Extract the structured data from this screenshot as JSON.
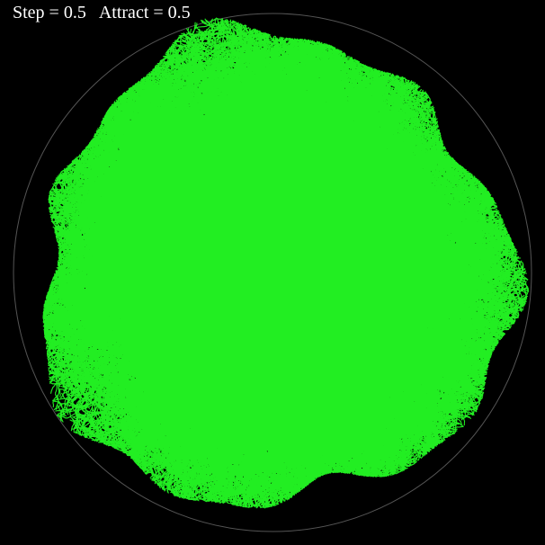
{
  "header": {
    "step_text": "Step = 0.5",
    "attract_text": "Attract = 0.5"
  },
  "simulation": {
    "step": 0.5,
    "attract": 0.5,
    "colors": {
      "background": "#000000",
      "cluster": "#22ee22",
      "boundary": "#555555",
      "text": "#ffffff"
    }
  }
}
